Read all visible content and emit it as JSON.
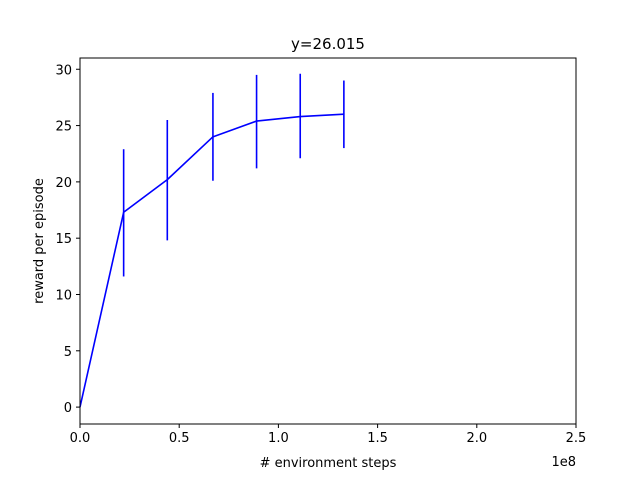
{
  "chart_data": {
    "type": "line",
    "title": "y=26.015",
    "xlabel": "# environment steps",
    "ylabel": "reward per episode",
    "x_offset_label": "1e8",
    "xlim": [
      0,
      2.5
    ],
    "ylim": [
      -1.5,
      31
    ],
    "x_ticks": [
      0.0,
      0.5,
      1.0,
      1.5,
      2.0,
      2.5
    ],
    "x_tick_labels": [
      "0.0",
      "0.5",
      "1.0",
      "1.5",
      "2.0",
      "2.5"
    ],
    "y_ticks": [
      0,
      5,
      10,
      15,
      20,
      25,
      30
    ],
    "y_tick_labels": [
      "0",
      "5",
      "10",
      "15",
      "20",
      "25",
      "30"
    ],
    "grid": false,
    "series": [
      {
        "color": "#0000ff",
        "x": [
          0.0,
          0.22,
          0.44,
          0.67,
          0.89,
          1.11,
          1.33
        ],
        "y": [
          0.0,
          17.3,
          20.2,
          24.0,
          25.4,
          25.8,
          26.015
        ],
        "error_low": [
          null,
          11.6,
          14.8,
          20.1,
          21.2,
          22.1,
          23.0
        ],
        "error_high": [
          null,
          22.9,
          25.5,
          27.9,
          29.5,
          29.6,
          29.0
        ]
      }
    ]
  }
}
